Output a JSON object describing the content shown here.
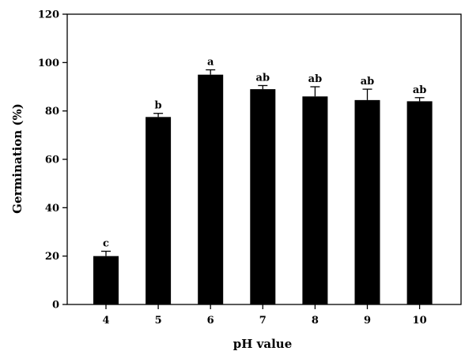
{
  "chart_data": {
    "type": "bar",
    "title": "",
    "xlabel": "pH value",
    "ylabel": "Germination (%)",
    "categories": [
      "4",
      "5",
      "6",
      "7",
      "8",
      "9",
      "10"
    ],
    "values": [
      20,
      77.5,
      95,
      89,
      86,
      84.5,
      84
    ],
    "error": [
      2,
      1.5,
      2,
      1.5,
      4,
      4.5,
      1.5
    ],
    "labels": [
      "c",
      "b",
      "a",
      "ab",
      "ab",
      "ab",
      "ab"
    ],
    "ylim": [
      0,
      120
    ],
    "yticks": [
      0,
      20,
      40,
      60,
      80,
      100,
      120
    ],
    "grid": false,
    "bar_color": "#000000"
  }
}
